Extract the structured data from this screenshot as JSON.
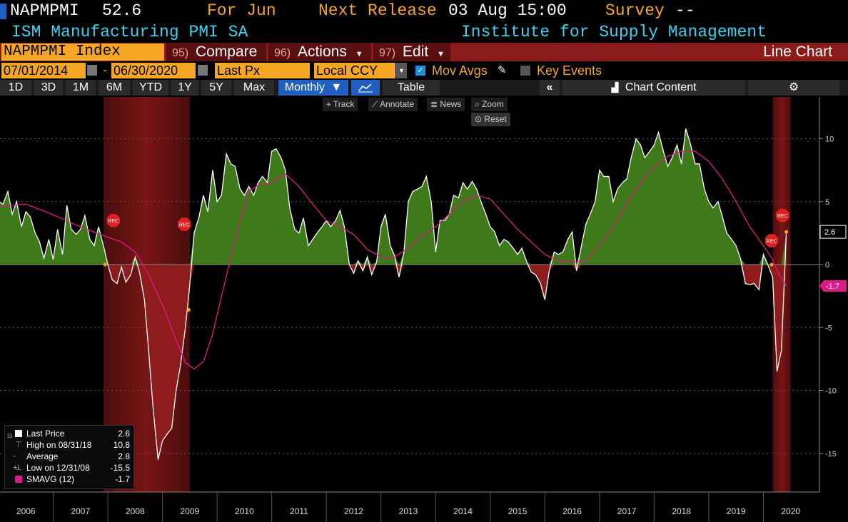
{
  "header": {
    "ticker": "NAPMPMI",
    "value": "52.6",
    "for_label": "For Jun",
    "next_release_label": "Next Release",
    "next_release_value": "03 Aug 15:00",
    "survey_label": "Survey",
    "survey_value": "--",
    "series_name": "ISM Manufacturing PMI SA",
    "source": "Institute for Supply Management"
  },
  "toolbar": {
    "security": "NAPMPMI Index",
    "compare_num": "95)",
    "compare_label": "Compare",
    "actions_num": "96)",
    "actions_label": "Actions",
    "edit_num": "97)",
    "edit_label": "Edit",
    "chart_type": "Line Chart",
    "start_date": "07/01/2014",
    "end_date": "06/30/2020",
    "dash": "-",
    "field": "Last Px",
    "currency": "Local CCY",
    "mov_avgs": "Mov Avgs",
    "key_events": "Key Events",
    "ranges": [
      "1D",
      "3D",
      "1M",
      "6M",
      "YTD",
      "1Y",
      "5Y",
      "Max"
    ],
    "period": "Monthly",
    "table": "Table",
    "chart_content": "Chart Content",
    "track": "Track",
    "annotate": "Annotate",
    "news": "News",
    "zoom": "Zoom",
    "reset": "Reset"
  },
  "legend": {
    "last_price_label": "Last Price",
    "last_price_value": "2.6",
    "high_label": "High on 08/31/18",
    "high_value": "10.8",
    "average_label": "Average",
    "average_value": "2.8",
    "low_label": "Low on 12/31/08",
    "low_value": "-15.5",
    "smavg_label": "SMAVG (12)",
    "smavg_value": "-1.7"
  },
  "colors": {
    "positive_fill": "#3f7a1a",
    "negative_fill": "#8e1c1c",
    "price_line": "#ffffff",
    "smavg_line": "#e0198a",
    "recession_band": "#7a1515",
    "orange": "#f5a623",
    "cyan": "#39d3f0"
  },
  "chart_data": {
    "type": "area",
    "title": "NAPMPMI Index",
    "ylabel": "",
    "xlabel": "",
    "ylim": [
      -18,
      13
    ],
    "y_ticks": [
      10,
      5,
      0,
      -5,
      -10,
      -15
    ],
    "x_ticks": [
      "2006",
      "2007",
      "2008",
      "2009",
      "2010",
      "2011",
      "2012",
      "2013",
      "2014",
      "2015",
      "2016",
      "2017",
      "2018",
      "2019",
      "2020"
    ],
    "last_value_label": "2.6",
    "smavg_value_label": "-1.7",
    "recession_marker": "REC",
    "recessions": [
      {
        "start": 2007.92,
        "end": 2009.5
      },
      {
        "start": 2020.17,
        "end": 2020.5
      }
    ],
    "series": [
      {
        "name": "Last Price",
        "points": [
          [
            2006.0,
            5.0
          ],
          [
            2006.08,
            4.8
          ],
          [
            2006.17,
            5.8
          ],
          [
            2006.25,
            4.0
          ],
          [
            2006.33,
            5.0
          ],
          [
            2006.42,
            3.0
          ],
          [
            2006.5,
            4.2
          ],
          [
            2006.58,
            3.8
          ],
          [
            2006.67,
            2.5
          ],
          [
            2006.75,
            1.8
          ],
          [
            2006.83,
            0.5
          ],
          [
            2006.92,
            2.0
          ],
          [
            2007.0,
            0.4
          ],
          [
            2007.08,
            2.8
          ],
          [
            2007.17,
            0.8
          ],
          [
            2007.25,
            4.7
          ],
          [
            2007.33,
            2.8
          ],
          [
            2007.42,
            2.4
          ],
          [
            2007.5,
            2.8
          ],
          [
            2007.58,
            3.9
          ],
          [
            2007.67,
            2.0
          ],
          [
            2007.75,
            1.5
          ],
          [
            2007.83,
            3.0
          ],
          [
            2007.92,
            1.5
          ],
          [
            2008.0,
            0.0
          ],
          [
            2008.08,
            -1.2
          ],
          [
            2008.17,
            -1.5
          ],
          [
            2008.25,
            -0.2
          ],
          [
            2008.33,
            -1.4
          ],
          [
            2008.42,
            -0.8
          ],
          [
            2008.5,
            0.6
          ],
          [
            2008.58,
            -0.6
          ],
          [
            2008.67,
            -2.8
          ],
          [
            2008.75,
            -7.0
          ],
          [
            2008.83,
            -11.5
          ],
          [
            2008.92,
            -15.5
          ],
          [
            2009.0,
            -14.0
          ],
          [
            2009.08,
            -13.5
          ],
          [
            2009.17,
            -13.0
          ],
          [
            2009.25,
            -10.0
          ],
          [
            2009.33,
            -8.0
          ],
          [
            2009.42,
            -5.0
          ],
          [
            2009.5,
            -1.6
          ],
          [
            2009.58,
            2.5
          ],
          [
            2009.67,
            3.8
          ],
          [
            2009.75,
            5.5
          ],
          [
            2009.83,
            4.2
          ],
          [
            2009.92,
            7.5
          ],
          [
            2010.0,
            5.0
          ],
          [
            2010.08,
            5.5
          ],
          [
            2010.17,
            8.8
          ],
          [
            2010.25,
            8.0
          ],
          [
            2010.33,
            7.8
          ],
          [
            2010.42,
            6.0
          ],
          [
            2010.5,
            5.5
          ],
          [
            2010.58,
            6.2
          ],
          [
            2010.67,
            5.5
          ],
          [
            2010.75,
            6.5
          ],
          [
            2010.83,
            7.0
          ],
          [
            2010.92,
            6.5
          ],
          [
            2011.0,
            9.0
          ],
          [
            2011.08,
            9.2
          ],
          [
            2011.17,
            8.5
          ],
          [
            2011.25,
            7.5
          ],
          [
            2011.33,
            4.5
          ],
          [
            2011.42,
            2.8
          ],
          [
            2011.5,
            2.5
          ],
          [
            2011.58,
            3.7
          ],
          [
            2011.67,
            1.5
          ],
          [
            2011.75,
            2.0
          ],
          [
            2011.83,
            2.5
          ],
          [
            2011.92,
            3.0
          ],
          [
            2012.0,
            3.5
          ],
          [
            2012.08,
            3.0
          ],
          [
            2012.17,
            3.5
          ],
          [
            2012.25,
            4.3
          ],
          [
            2012.33,
            3.0
          ],
          [
            2012.42,
            0.0
          ],
          [
            2012.5,
            -0.7
          ],
          [
            2012.58,
            0.3
          ],
          [
            2012.67,
            -0.5
          ],
          [
            2012.75,
            0.6
          ],
          [
            2012.83,
            -0.8
          ],
          [
            2012.92,
            0.2
          ],
          [
            2013.0,
            3.0
          ],
          [
            2013.08,
            4.0
          ],
          [
            2013.17,
            1.5
          ],
          [
            2013.25,
            0.7
          ],
          [
            2013.33,
            -1.0
          ],
          [
            2013.42,
            1.0
          ],
          [
            2013.5,
            5.0
          ],
          [
            2013.58,
            5.8
          ],
          [
            2013.67,
            6.0
          ],
          [
            2013.75,
            6.2
          ],
          [
            2013.83,
            7.0
          ],
          [
            2013.92,
            5.0
          ],
          [
            2014.0,
            1.0
          ],
          [
            2014.08,
            3.5
          ],
          [
            2014.17,
            3.5
          ],
          [
            2014.25,
            4.0
          ],
          [
            2014.33,
            5.5
          ],
          [
            2014.42,
            5.3
          ],
          [
            2014.5,
            6.5
          ],
          [
            2014.58,
            6.0
          ],
          [
            2014.67,
            6.6
          ],
          [
            2014.75,
            6.0
          ],
          [
            2014.83,
            5.0
          ],
          [
            2014.92,
            4.0
          ],
          [
            2015.0,
            3.0
          ],
          [
            2015.08,
            2.6
          ],
          [
            2015.17,
            1.5
          ],
          [
            2015.25,
            2.0
          ],
          [
            2015.33,
            1.8
          ],
          [
            2015.42,
            1.3
          ],
          [
            2015.5,
            0.8
          ],
          [
            2015.58,
            1.3
          ],
          [
            2015.67,
            0.2
          ],
          [
            2015.75,
            -0.6
          ],
          [
            2015.83,
            -0.8
          ],
          [
            2015.92,
            -1.5
          ],
          [
            2016.0,
            -2.8
          ],
          [
            2016.08,
            -0.5
          ],
          [
            2016.17,
            1.0
          ],
          [
            2016.25,
            0.8
          ],
          [
            2016.33,
            1.0
          ],
          [
            2016.42,
            2.0
          ],
          [
            2016.5,
            2.6
          ],
          [
            2016.58,
            -0.5
          ],
          [
            2016.67,
            1.5
          ],
          [
            2016.75,
            3.2
          ],
          [
            2016.83,
            4.0
          ],
          [
            2016.92,
            5.0
          ],
          [
            2017.0,
            7.5
          ],
          [
            2017.08,
            7.0
          ],
          [
            2017.17,
            7.0
          ],
          [
            2017.25,
            5.0
          ],
          [
            2017.33,
            6.0
          ],
          [
            2017.42,
            6.5
          ],
          [
            2017.5,
            6.8
          ],
          [
            2017.58,
            8.5
          ],
          [
            2017.67,
            10.0
          ],
          [
            2017.75,
            9.5
          ],
          [
            2017.83,
            8.5
          ],
          [
            2017.92,
            9.0
          ],
          [
            2018.0,
            9.5
          ],
          [
            2018.08,
            10.5
          ],
          [
            2018.17,
            9.0
          ],
          [
            2018.25,
            7.8
          ],
          [
            2018.33,
            8.5
          ],
          [
            2018.42,
            9.5
          ],
          [
            2018.5,
            8.0
          ],
          [
            2018.58,
            10.8
          ],
          [
            2018.67,
            9.5
          ],
          [
            2018.75,
            8.0
          ],
          [
            2018.83,
            8.0
          ],
          [
            2018.92,
            6.0
          ],
          [
            2019.0,
            5.0
          ],
          [
            2019.08,
            4.5
          ],
          [
            2019.17,
            5.0
          ],
          [
            2019.25,
            3.8
          ],
          [
            2019.33,
            2.5
          ],
          [
            2019.42,
            2.0
          ],
          [
            2019.5,
            1.5
          ],
          [
            2019.58,
            0.5
          ],
          [
            2019.67,
            -1.5
          ],
          [
            2019.75,
            -1.6
          ],
          [
            2019.83,
            -1.5
          ],
          [
            2019.92,
            -2.0
          ],
          [
            2020.0,
            0.8
          ],
          [
            2020.08,
            0.0
          ],
          [
            2020.17,
            -1.0
          ],
          [
            2020.25,
            -8.5
          ],
          [
            2020.33,
            -6.8
          ],
          [
            2020.42,
            2.6
          ]
        ]
      },
      {
        "name": "SMAVG (12)",
        "points": [
          [
            2006.0,
            4.6
          ],
          [
            2006.5,
            4.8
          ],
          [
            2006.92,
            4.1
          ],
          [
            2007.5,
            3.0
          ],
          [
            2007.92,
            2.3
          ],
          [
            2008.25,
            1.8
          ],
          [
            2008.5,
            1.0
          ],
          [
            2008.75,
            -0.8
          ],
          [
            2009.0,
            -3.2
          ],
          [
            2009.25,
            -6.0
          ],
          [
            2009.42,
            -7.8
          ],
          [
            2009.58,
            -8.3
          ],
          [
            2009.75,
            -7.7
          ],
          [
            2009.92,
            -5.5
          ],
          [
            2010.08,
            -2.5
          ],
          [
            2010.25,
            0.5
          ],
          [
            2010.42,
            3.5
          ],
          [
            2010.58,
            5.8
          ],
          [
            2010.75,
            6.3
          ],
          [
            2011.0,
            6.5
          ],
          [
            2011.25,
            7.2
          ],
          [
            2011.5,
            6.2
          ],
          [
            2011.75,
            4.8
          ],
          [
            2012.0,
            3.5
          ],
          [
            2012.25,
            3.0
          ],
          [
            2012.5,
            2.4
          ],
          [
            2012.75,
            1.2
          ],
          [
            2013.0,
            0.6
          ],
          [
            2013.25,
            0.6
          ],
          [
            2013.5,
            1.3
          ],
          [
            2013.75,
            2.3
          ],
          [
            2014.0,
            3.0
          ],
          [
            2014.25,
            4.0
          ],
          [
            2014.5,
            5.0
          ],
          [
            2014.75,
            5.5
          ],
          [
            2015.0,
            5.2
          ],
          [
            2015.25,
            4.0
          ],
          [
            2015.5,
            2.8
          ],
          [
            2015.75,
            1.8
          ],
          [
            2016.0,
            0.8
          ],
          [
            2016.25,
            0.3
          ],
          [
            2016.5,
            0.2
          ],
          [
            2016.75,
            0.3
          ],
          [
            2017.0,
            1.5
          ],
          [
            2017.25,
            3.0
          ],
          [
            2017.5,
            4.8
          ],
          [
            2017.75,
            6.5
          ],
          [
            2018.0,
            7.8
          ],
          [
            2018.25,
            8.6
          ],
          [
            2018.5,
            9.0
          ],
          [
            2018.75,
            9.0
          ],
          [
            2019.0,
            8.2
          ],
          [
            2019.25,
            6.8
          ],
          [
            2019.5,
            5.0
          ],
          [
            2019.75,
            3.0
          ],
          [
            2020.0,
            1.5
          ],
          [
            2020.17,
            0.4
          ],
          [
            2020.25,
            -0.5
          ],
          [
            2020.42,
            -1.7
          ]
        ]
      }
    ]
  }
}
